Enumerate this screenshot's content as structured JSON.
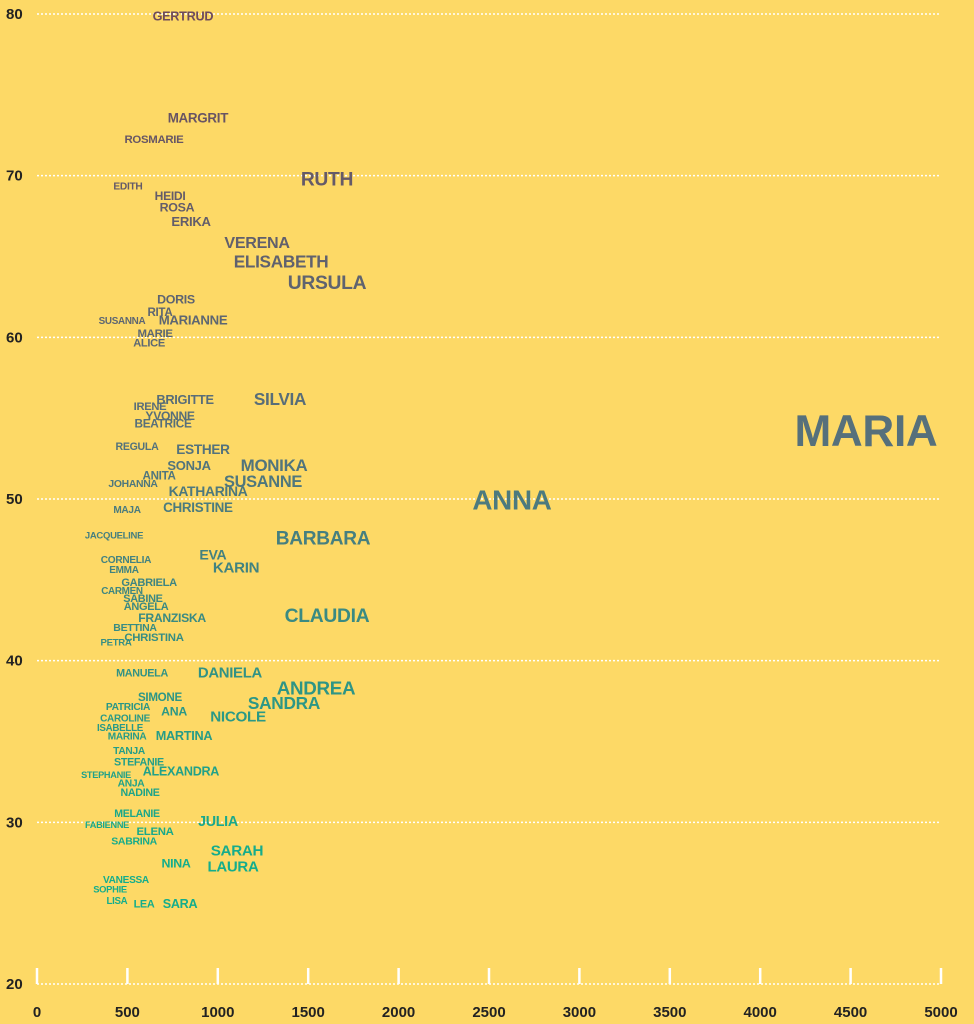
{
  "chart_data": {
    "type": "scatter",
    "labels": [
      "GERTRUD",
      "MARGRIT",
      "ROSMARIE",
      "RUTH",
      "EDITH",
      "HEIDI",
      "ROSA",
      "ERIKA",
      "VERENA",
      "ELISABETH",
      "URSULA",
      "DORIS",
      "RITA",
      "SUSANNA",
      "MARIANNE",
      "MARIE",
      "ALICE",
      "BRIGITTE",
      "SILVIA",
      "IRENE",
      "YVONNE",
      "BEATRICE",
      "MARIA",
      "REGULA",
      "ESTHER",
      "SONJA",
      "MONIKA",
      "ANITA",
      "JOHANNA",
      "SUSANNE",
      "KATHARINA",
      "ANNA",
      "MAJA",
      "CHRISTINE",
      "JACQUELINE",
      "BARBARA",
      "EVA",
      "CORNELIA",
      "KARIN",
      "EMMA",
      "GABRIELA",
      "CARMEN",
      "SABINE",
      "ANGELA",
      "CLAUDIA",
      "FRANZISKA",
      "BETTINA",
      "CHRISTINA",
      "PETRA",
      "MANUELA",
      "DANIELA",
      "ANDREA",
      "SIMONE",
      "SANDRA",
      "PATRICIA",
      "ANA",
      "CAROLINE",
      "NICOLE",
      "ISABELLE",
      "MARINA",
      "MARTINA",
      "TANJA",
      "STEFANIE",
      "STEPHANIE",
      "ALEXANDRA",
      "ANJA",
      "NADINE",
      "MELANIE",
      "JULIA",
      "FABIENNE",
      "ELENA",
      "SABRINA",
      "SARAH",
      "NINA",
      "LAURA",
      "VANESSA",
      "SOPHIE",
      "LISA",
      "LEA",
      "SARA"
    ],
    "x": [
      807,
      890,
      647,
      1604,
      503,
      736,
      774,
      852,
      1217,
      1350,
      1604,
      769,
      680,
      470,
      863,
      653,
      620,
      819,
      1344,
      625,
      736,
      697,
      4585,
      553,
      918,
      841,
      1311,
      675,
      531,
      1250,
      946,
      2627,
      498,
      890,
      426,
      1582,
      973,
      492,
      1101,
      481,
      620,
      470,
      586,
      603,
      1604,
      747,
      542,
      647,
      437,
      581,
      1067,
      1543,
      680,
      1366,
      503,
      758,
      487,
      1112,
      459,
      498,
      813,
      509,
      564,
      382,
      796,
      520,
      570,
      553,
      1001,
      387,
      653,
      537,
      1106,
      769,
      1084,
      492,
      404,
      442,
      592,
      791
    ],
    "y": [
      79.8,
      73.5,
      72.2,
      69.7,
      69.3,
      68.7,
      68.0,
      67.1,
      65.8,
      64.6,
      63.3,
      62.3,
      61.5,
      61.0,
      61.0,
      60.2,
      59.6,
      56.1,
      56.1,
      55.7,
      55.1,
      54.6,
      54.0,
      53.2,
      53.0,
      52.0,
      52.0,
      51.4,
      50.9,
      51.0,
      50.4,
      49.8,
      49.3,
      49.4,
      47.7,
      47.5,
      46.5,
      46.2,
      45.7,
      45.6,
      44.8,
      44.3,
      43.8,
      43.3,
      42.7,
      42.6,
      42.0,
      41.4,
      41.1,
      39.2,
      39.2,
      38.2,
      37.7,
      37.3,
      37.1,
      36.8,
      36.4,
      36.5,
      35.8,
      35.3,
      35.3,
      34.4,
      33.7,
      32.9,
      33.1,
      32.4,
      31.8,
      30.5,
      30.0,
      29.8,
      29.4,
      28.8,
      28.2,
      27.4,
      27.2,
      26.4,
      25.8,
      25.1,
      24.9,
      24.9
    ],
    "xlim": [
      0,
      5000
    ],
    "xticks": [
      0,
      500,
      1000,
      1500,
      2000,
      2500,
      3000,
      3500,
      4000,
      4500,
      5000
    ],
    "ylim": [
      20,
      80
    ],
    "yticks": [
      20,
      30,
      40,
      50,
      60,
      70,
      80
    ],
    "grid": true,
    "color_stops": [
      "#6e4b5b",
      "#56707b",
      "#14ad8c"
    ]
  }
}
